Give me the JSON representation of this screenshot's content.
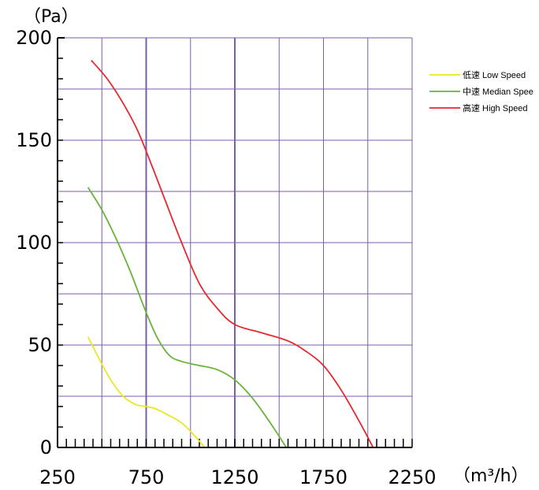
{
  "chart_data": {
    "type": "line",
    "ylabel": "（Pa）",
    "xlabel": "（m³/h）",
    "xlim": [
      250,
      2250
    ],
    "ylim": [
      0,
      200
    ],
    "x_ticks": [
      "250",
      "750",
      "1250",
      "1750",
      "2250"
    ],
    "y_ticks": [
      "0",
      "50",
      "100",
      "150",
      "200"
    ],
    "grid": true,
    "legend_position": "right",
    "series": [
      {
        "name": "低速 Low Speed",
        "color": "#e8e820",
        "points": [
          [
            422,
            54
          ],
          [
            480,
            44
          ],
          [
            550,
            33
          ],
          [
            620,
            25
          ],
          [
            690,
            21
          ],
          [
            750,
            20
          ],
          [
            800,
            19
          ],
          [
            870,
            16
          ],
          [
            950,
            12
          ],
          [
            1020,
            6
          ],
          [
            1080,
            0
          ]
        ]
      },
      {
        "name": "中速 Median Spee",
        "color": "#6ab33a",
        "points": [
          [
            422,
            127
          ],
          [
            500,
            116
          ],
          [
            580,
            102
          ],
          [
            660,
            86
          ],
          [
            740,
            68
          ],
          [
            810,
            54
          ],
          [
            880,
            45
          ],
          [
            950,
            42
          ],
          [
            1050,
            40
          ],
          [
            1150,
            38
          ],
          [
            1250,
            33
          ],
          [
            1350,
            24
          ],
          [
            1450,
            12
          ],
          [
            1540,
            0
          ]
        ]
      },
      {
        "name": "高速 High Speed",
        "color": "#e8282c",
        "points": [
          [
            440,
            189
          ],
          [
            530,
            180
          ],
          [
            620,
            168
          ],
          [
            700,
            155
          ],
          [
            780,
            138
          ],
          [
            860,
            120
          ],
          [
            950,
            100
          ],
          [
            1050,
            80
          ],
          [
            1150,
            68
          ],
          [
            1250,
            60
          ],
          [
            1400,
            56
          ],
          [
            1550,
            52
          ],
          [
            1650,
            47
          ],
          [
            1750,
            40
          ],
          [
            1850,
            28
          ],
          [
            1950,
            13
          ],
          [
            2030,
            0
          ]
        ]
      }
    ]
  }
}
